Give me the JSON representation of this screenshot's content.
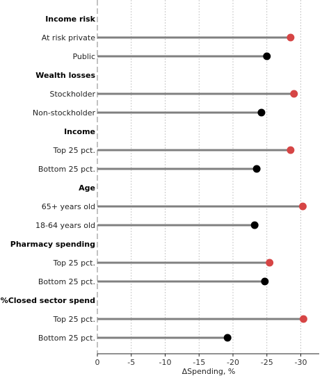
{
  "chart_data": {
    "type": "lollipop",
    "xlabel": "ΔSpending, %",
    "xlim": [
      0,
      -32
    ],
    "xticks": [
      0,
      -5,
      -10,
      -15,
      -20,
      -25,
      -30
    ],
    "xtick_labels": [
      "0",
      "-5",
      "-10",
      "-15",
      "-20",
      "-25",
      "-30"
    ],
    "grid": true,
    "colors": {
      "highlight": "#d64545",
      "base": "#000000",
      "stem": "#808080",
      "grid": "#bbbbbb",
      "zero_line": "#999999"
    },
    "rows": [
      {
        "kind": "group",
        "label": "Income risk"
      },
      {
        "kind": "item",
        "label": "At risk private",
        "value": -28.5,
        "highlight": true
      },
      {
        "kind": "item",
        "label": "Public",
        "value": -25.0,
        "highlight": false
      },
      {
        "kind": "group",
        "label": "Wealth losses"
      },
      {
        "kind": "item",
        "label": "Stockholder",
        "value": -29.0,
        "highlight": true
      },
      {
        "kind": "item",
        "label": "Non-stockholder",
        "value": -24.2,
        "highlight": false
      },
      {
        "kind": "group",
        "label": "Income"
      },
      {
        "kind": "item",
        "label": "Top 25 pct.",
        "value": -28.5,
        "highlight": true
      },
      {
        "kind": "item",
        "label": "Bottom 25 pct.",
        "value": -23.5,
        "highlight": false
      },
      {
        "kind": "group",
        "label": "Age"
      },
      {
        "kind": "item",
        "label": "65+ years old",
        "value": -30.3,
        "highlight": true
      },
      {
        "kind": "item",
        "label": "18-64 years old",
        "value": -23.2,
        "highlight": false
      },
      {
        "kind": "group",
        "label": "Pharmacy spending"
      },
      {
        "kind": "item",
        "label": "Top 25 pct.",
        "value": -25.4,
        "highlight": true
      },
      {
        "kind": "item",
        "label": "Bottom 25 pct.",
        "value": -24.7,
        "highlight": false
      },
      {
        "kind": "group",
        "label": "%Closed sector spend"
      },
      {
        "kind": "item",
        "label": "Top 25 pct.",
        "value": -30.4,
        "highlight": true
      },
      {
        "kind": "item",
        "label": "Bottom 25 pct.",
        "value": -19.2,
        "highlight": false
      }
    ]
  }
}
